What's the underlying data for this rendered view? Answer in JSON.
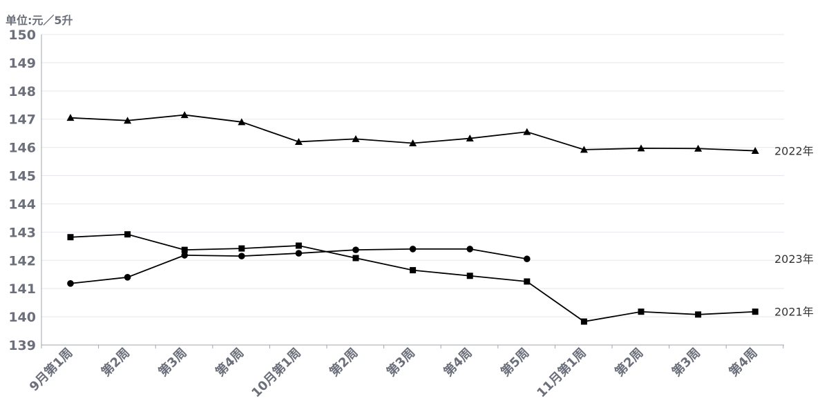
{
  "chart_data": {
    "type": "line",
    "unit_label": "单位:元／5升",
    "categories": [
      "9月第1周",
      "第2周",
      "第3周",
      "第4周",
      "10月第1周",
      "第2周",
      "第3周",
      "第4周",
      "第5周",
      "11月第1周",
      "第2周",
      "第3周",
      "第4周"
    ],
    "ylim": [
      139,
      150
    ],
    "yticks": [
      139,
      140,
      141,
      142,
      143,
      144,
      145,
      146,
      147,
      148,
      149,
      150
    ],
    "grid": true,
    "series": [
      {
        "name": "2022年",
        "marker": "triangle",
        "values": [
          147.05,
          146.95,
          147.15,
          146.9,
          146.2,
          146.3,
          146.15,
          146.32,
          146.55,
          145.92,
          145.97,
          145.96,
          145.88
        ]
      },
      {
        "name": "2023年",
        "marker": "circle",
        "values": [
          141.18,
          141.4,
          142.18,
          142.15,
          142.25,
          142.37,
          142.4,
          142.4,
          142.05,
          null,
          null,
          null,
          null
        ]
      },
      {
        "name": "2021年",
        "marker": "square",
        "values": [
          142.82,
          142.92,
          142.37,
          142.42,
          142.52,
          142.08,
          141.65,
          141.45,
          141.25,
          139.83,
          140.18,
          140.08,
          140.18
        ]
      }
    ]
  }
}
